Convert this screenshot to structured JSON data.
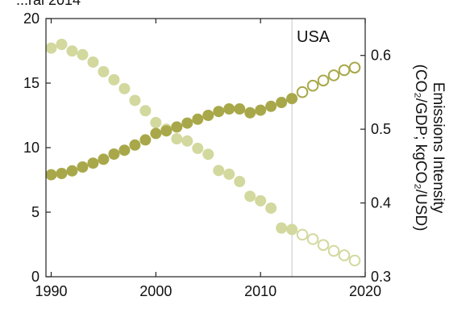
{
  "chart_data": {
    "type": "scatter",
    "title": "",
    "top_clipped_text": "...ral 2014",
    "annotation": "USA",
    "x": {
      "range": [
        1989.5,
        2020
      ],
      "ticks": [
        1990,
        2000,
        2010,
        2020
      ],
      "tick_labels": [
        "1990",
        "2000",
        "2010",
        "2020"
      ]
    },
    "y_left": {
      "range": [
        0,
        20
      ],
      "ticks": [
        0,
        5,
        10,
        15,
        20
      ],
      "tick_labels": [
        "0",
        "5",
        "10",
        "15",
        "20"
      ]
    },
    "y_right": {
      "range": [
        0.3,
        0.65
      ],
      "ticks": [
        0.3,
        0.4,
        0.5,
        0.6
      ],
      "tick_labels": [
        "0.3",
        "0.4",
        "0.5",
        "0.6"
      ],
      "label_line1": "Emissions Intensity",
      "label_line2": "(CO₂/GDP; kgCO₂/USD)"
    },
    "divider_x": 2013,
    "grid": false,
    "colors": {
      "series_a": "#a8a84a",
      "series_b": "#d3d89e",
      "divider": "#cfcfcf",
      "axis": "#222222"
    },
    "series": [
      {
        "id": "series_a",
        "axis": "left",
        "x": [
          1990,
          1991,
          1992,
          1993,
          1994,
          1995,
          1996,
          1997,
          1998,
          1999,
          2000,
          2001,
          2002,
          2003,
          2004,
          2005,
          2006,
          2007,
          2008,
          2009,
          2010,
          2011,
          2012,
          2013
        ],
        "values": [
          7.9,
          8.0,
          8.2,
          8.5,
          8.8,
          9.1,
          9.5,
          9.8,
          10.2,
          10.6,
          11.1,
          11.3,
          11.6,
          11.9,
          12.2,
          12.5,
          12.8,
          13.0,
          13.0,
          12.7,
          12.9,
          13.2,
          13.5,
          13.8
        ],
        "projected_x": [
          2014,
          2015,
          2016,
          2017,
          2018,
          2019
        ],
        "projected_values": [
          14.3,
          14.8,
          15.2,
          15.6,
          16.0,
          16.2
        ]
      },
      {
        "id": "series_b",
        "axis": "right",
        "x": [
          1990,
          1991,
          1992,
          1993,
          1994,
          1995,
          1996,
          1997,
          1998,
          1999,
          2000,
          2001,
          2002,
          2003,
          2004,
          2005,
          2006,
          2007,
          2008,
          2009,
          2010,
          2011,
          2012,
          2013
        ],
        "values": [
          0.61,
          0.615,
          0.606,
          0.601,
          0.591,
          0.578,
          0.567,
          0.555,
          0.539,
          0.525,
          0.509,
          0.5,
          0.487,
          0.484,
          0.474,
          0.466,
          0.444,
          0.439,
          0.429,
          0.409,
          0.403,
          0.393,
          0.366,
          0.364
        ],
        "projected_x": [
          2014,
          2015,
          2016,
          2017,
          2018,
          2019
        ],
        "projected_values": [
          0.357,
          0.351,
          0.343,
          0.335,
          0.329,
          0.322
        ]
      }
    ]
  }
}
